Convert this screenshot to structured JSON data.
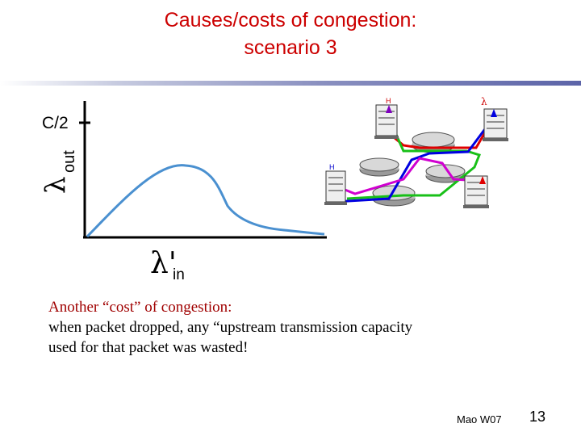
{
  "slide": {
    "title_line1": "Causes/costs of congestion:",
    "title_line2": "scenario 3",
    "body_line1": "Another “cost” of congestion:",
    "body_line2": "when packet dropped, any “upstream transmission capacity",
    "body_line3": "used for that packet was wasted!",
    "footer_author": "Mao W07",
    "page_number": "13"
  },
  "graph": {
    "y_tick_label": "C/2",
    "y_axis_symbol": "λ",
    "y_axis_subscript": "out",
    "x_axis_symbol": "λ'",
    "x_axis_subscript": "in"
  },
  "network": {
    "host_label": "H",
    "lambda_label": "λ"
  },
  "colors": {
    "title": "#cc0000",
    "curve": "#4a90d0",
    "path_red": "#e00000",
    "path_green": "#18c018",
    "path_blue": "#0000e0",
    "path_magenta": "#d000d0"
  }
}
